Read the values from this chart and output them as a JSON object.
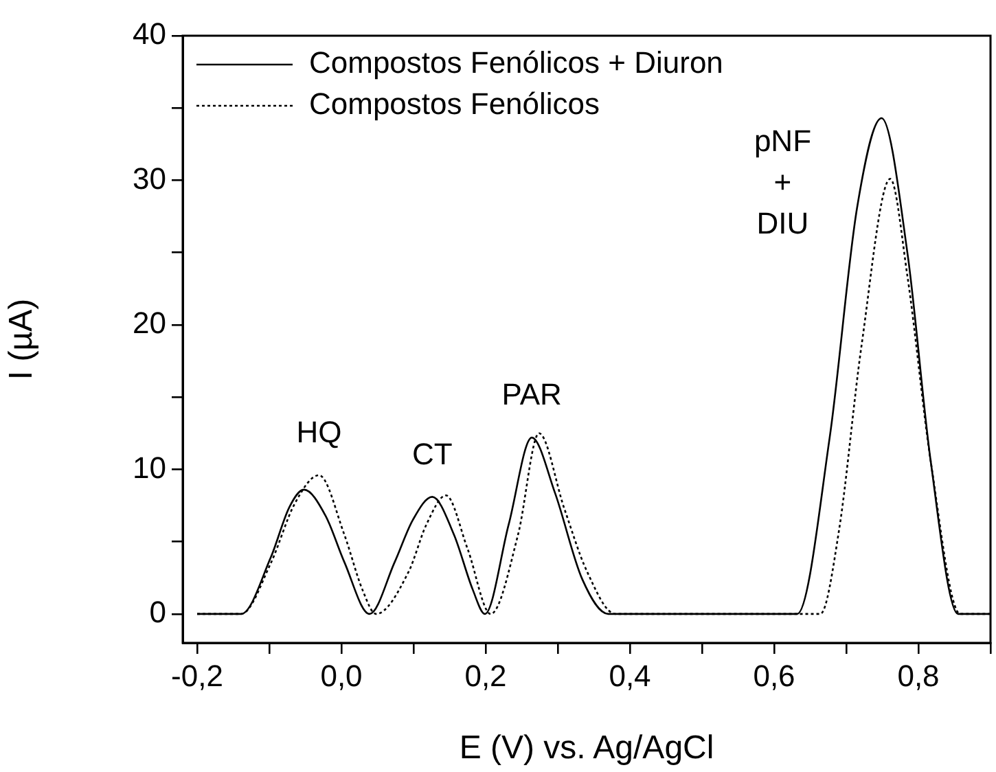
{
  "chart_data": {
    "type": "line",
    "xlabel": "E (V) vs. Ag/AgCl",
    "ylabel": "I (µA)",
    "xlim": [
      -0.22,
      0.9
    ],
    "ylim": [
      -2,
      40
    ],
    "xticks": [
      {
        "value": -0.2,
        "label": "-0,2"
      },
      {
        "value": -0.1,
        "label": null
      },
      {
        "value": 0,
        "label": "0,0"
      },
      {
        "value": 0.1,
        "label": null
      },
      {
        "value": 0.2,
        "label": "0,2"
      },
      {
        "value": 0.3,
        "label": null
      },
      {
        "value": 0.4,
        "label": "0,4"
      },
      {
        "value": 0.5,
        "label": null
      },
      {
        "value": 0.6,
        "label": "0,6"
      },
      {
        "value": 0.7,
        "label": null
      },
      {
        "value": 0.8,
        "label": "0,8"
      },
      {
        "value": 0.9,
        "label": null
      }
    ],
    "yticks": [
      0,
      {
        "value": 5,
        "label": null
      },
      10,
      {
        "value": 15,
        "label": null
      },
      20,
      {
        "value": 25,
        "label": null
      },
      30,
      {
        "value": 35,
        "label": null
      },
      40
    ],
    "legend": "top left",
    "grid": false,
    "marker": "none",
    "series": [
      {
        "name": "Compostos Fenólicos + Diuron",
        "color": "#000000",
        "line_style": "solid",
        "x": [
          -0.2,
          -0.139,
          -0.098,
          -0.072,
          -0.052,
          -0.022,
          0.004,
          0.039,
          0.074,
          0.099,
          0.126,
          0.156,
          0.182,
          0.199,
          0.232,
          0.264,
          0.296,
          0.334,
          0.37,
          0.632,
          0.677,
          0.715,
          0.749,
          0.785,
          0.817,
          0.855,
          0.899
        ],
        "values": [
          0,
          0,
          3.9,
          7.4,
          8.6,
          6.8,
          3.6,
          0,
          3.6,
          6.5,
          8.1,
          5.5,
          1.7,
          0,
          6.2,
          12.2,
          8.4,
          2.4,
          0,
          0,
          12.2,
          28.1,
          34.3,
          24.9,
          10.6,
          0,
          0
        ]
      },
      {
        "name": "Compostos Fenólicos",
        "color": "#000000",
        "line_style": "dotted",
        "x": [
          -0.2,
          -0.139,
          -0.098,
          -0.065,
          -0.031,
          0.004,
          0.029,
          0.048,
          0.093,
          0.118,
          0.145,
          0.175,
          0.207,
          0.245,
          0.274,
          0.309,
          0.34,
          0.38,
          0.664,
          0.69,
          0.721,
          0.761,
          0.785,
          0.817,
          0.858,
          0.899
        ],
        "values": [
          0,
          0,
          3.5,
          7.6,
          9.6,
          5.5,
          1.7,
          0,
          2.9,
          6.2,
          8.2,
          4.5,
          0,
          5.5,
          12.5,
          7.3,
          3.0,
          0,
          0,
          5.8,
          18.5,
          30.1,
          23.3,
          10.6,
          0,
          0
        ]
      }
    ],
    "annotations": [
      {
        "text": "HQ",
        "x": -0.031,
        "y": 9.6
      },
      {
        "text": "CT",
        "x": 0.126,
        "y": 8.1
      },
      {
        "text": "PAR",
        "x": 0.264,
        "y": 12.2
      },
      {
        "text": "pNF\n+\nDIU",
        "x": 0.749,
        "y": 34.3
      }
    ]
  }
}
